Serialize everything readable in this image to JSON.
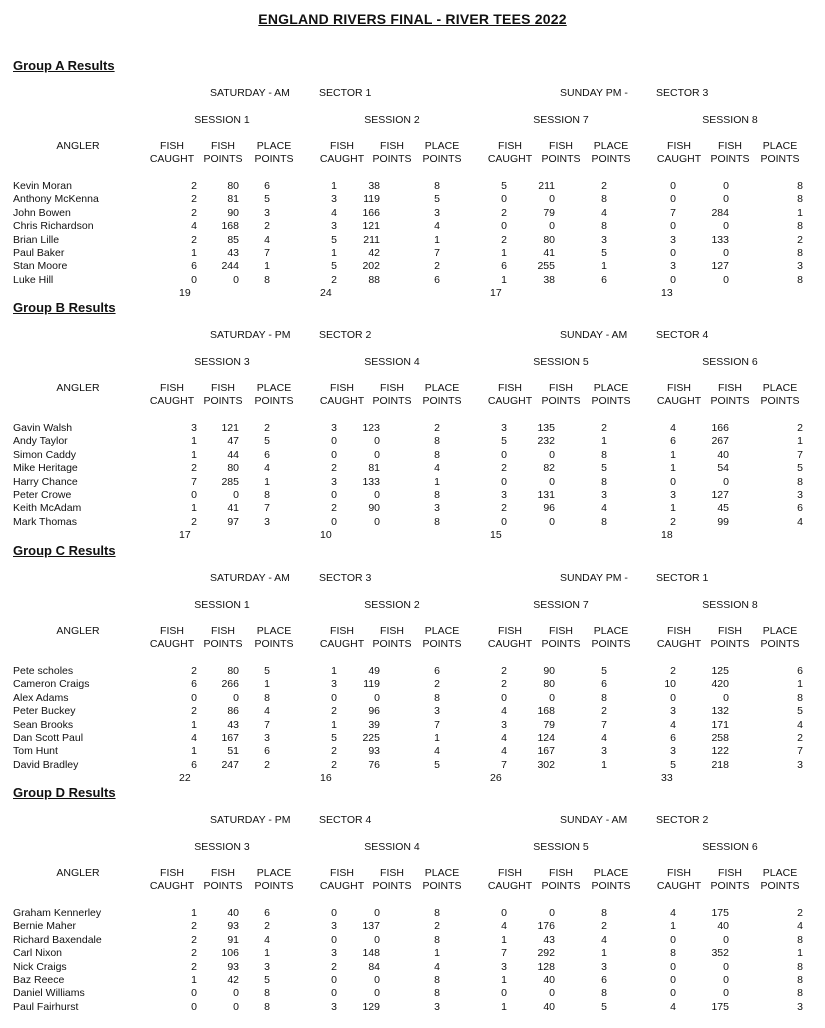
{
  "title": "ENGLAND RIVERS FINAL - RIVER TEES 2022",
  "column_headers": {
    "angler": "ANGLER",
    "fish_caught": [
      "FISH",
      "CAUGHT"
    ],
    "fish_points": [
      "FISH",
      "POINTS"
    ],
    "place_points": [
      "PLACE",
      "POINTS"
    ]
  },
  "groups": [
    {
      "heading": "Group A Results",
      "day1": "SATURDAY - AM",
      "sector1": "SECTOR 1",
      "day2": "SUNDAY PM -",
      "sector2": "SECTOR 3",
      "sessions": [
        "SESSION 1",
        "SESSION 2",
        "SESSION 7",
        "SESSION 8"
      ],
      "rows": [
        {
          "angler": "Kevin Moran",
          "v": [
            2,
            80,
            6,
            1,
            38,
            8,
            5,
            211,
            2,
            0,
            0,
            8
          ]
        },
        {
          "angler": "Anthony McKenna",
          "v": [
            2,
            81,
            5,
            3,
            119,
            5,
            0,
            0,
            8,
            0,
            0,
            8
          ]
        },
        {
          "angler": "John Bowen",
          "v": [
            2,
            90,
            3,
            4,
            166,
            3,
            2,
            79,
            4,
            7,
            284,
            1
          ]
        },
        {
          "angler": "Chris Richardson",
          "v": [
            4,
            168,
            2,
            3,
            121,
            4,
            0,
            0,
            8,
            0,
            0,
            8
          ]
        },
        {
          "angler": "Brian Lille",
          "v": [
            2,
            85,
            4,
            5,
            211,
            1,
            2,
            80,
            3,
            3,
            133,
            2
          ]
        },
        {
          "angler": "Paul Baker",
          "v": [
            1,
            43,
            7,
            1,
            42,
            7,
            1,
            41,
            5,
            0,
            0,
            8
          ]
        },
        {
          "angler": "Stan Moore",
          "v": [
            6,
            244,
            1,
            5,
            202,
            2,
            6,
            255,
            1,
            3,
            127,
            3
          ]
        },
        {
          "angler": "Luke Hill",
          "v": [
            0,
            0,
            8,
            2,
            88,
            6,
            1,
            38,
            6,
            0,
            0,
            8
          ]
        }
      ],
      "totals": [
        19,
        24,
        17,
        13
      ]
    },
    {
      "heading": "Group B Results",
      "day1": "SATURDAY - PM",
      "sector1": "SECTOR 2",
      "day2": "SUNDAY - AM",
      "sector2": "SECTOR 4",
      "sessions": [
        "SESSION 3",
        "SESSION 4",
        "SESSION 5",
        "SESSION 6"
      ],
      "rows": [
        {
          "angler": "Gavin Walsh",
          "v": [
            3,
            121,
            2,
            3,
            123,
            2,
            3,
            135,
            2,
            4,
            166,
            2
          ]
        },
        {
          "angler": "Andy Taylor",
          "v": [
            1,
            47,
            5,
            0,
            0,
            8,
            5,
            232,
            1,
            6,
            267,
            1
          ]
        },
        {
          "angler": "Simon Caddy",
          "v": [
            1,
            44,
            6,
            0,
            0,
            8,
            0,
            0,
            8,
            1,
            40,
            7
          ]
        },
        {
          "angler": "Mike Heritage",
          "v": [
            2,
            80,
            4,
            2,
            81,
            4,
            2,
            82,
            5,
            1,
            54,
            5
          ]
        },
        {
          "angler": "Harry Chance",
          "v": [
            7,
            285,
            1,
            3,
            133,
            1,
            0,
            0,
            8,
            0,
            0,
            8
          ]
        },
        {
          "angler": "Peter Crowe",
          "v": [
            0,
            0,
            8,
            0,
            0,
            8,
            3,
            131,
            3,
            3,
            127,
            3
          ]
        },
        {
          "angler": "Keith McAdam",
          "v": [
            1,
            41,
            7,
            2,
            90,
            3,
            2,
            96,
            4,
            1,
            45,
            6
          ]
        },
        {
          "angler": "Mark Thomas",
          "v": [
            2,
            97,
            3,
            0,
            0,
            8,
            0,
            0,
            8,
            2,
            99,
            4
          ]
        }
      ],
      "totals": [
        17,
        10,
        15,
        18
      ]
    },
    {
      "heading": "Group C Results",
      "day1": "SATURDAY - AM",
      "sector1": "SECTOR 3",
      "day2": "SUNDAY PM -",
      "sector2": "SECTOR 1",
      "sessions": [
        "SESSION 1",
        "SESSION 2",
        "SESSION 7",
        "SESSION 8"
      ],
      "rows": [
        {
          "angler": "Pete scholes",
          "v": [
            2,
            80,
            5,
            1,
            49,
            6,
            2,
            90,
            5,
            2,
            125,
            6
          ]
        },
        {
          "angler": "Cameron Craigs",
          "v": [
            6,
            266,
            1,
            3,
            119,
            2,
            2,
            80,
            6,
            10,
            420,
            1
          ]
        },
        {
          "angler": "Alex Adams",
          "v": [
            0,
            0,
            8,
            0,
            0,
            8,
            0,
            0,
            8,
            0,
            0,
            8
          ]
        },
        {
          "angler": "Peter Buckey",
          "v": [
            2,
            86,
            4,
            2,
            96,
            3,
            4,
            168,
            2,
            3,
            132,
            5
          ]
        },
        {
          "angler": "Sean Brooks",
          "v": [
            1,
            43,
            7,
            1,
            39,
            7,
            3,
            79,
            7,
            4,
            171,
            4
          ]
        },
        {
          "angler": "Dan Scott Paul",
          "v": [
            4,
            167,
            3,
            5,
            225,
            1,
            4,
            124,
            4,
            6,
            258,
            2
          ]
        },
        {
          "angler": "Tom Hunt",
          "v": [
            1,
            51,
            6,
            2,
            93,
            4,
            4,
            167,
            3,
            3,
            122,
            7
          ]
        },
        {
          "angler": "David Bradley",
          "v": [
            6,
            247,
            2,
            2,
            76,
            5,
            7,
            302,
            1,
            5,
            218,
            3
          ]
        }
      ],
      "totals": [
        22,
        16,
        26,
        33
      ]
    },
    {
      "heading": "Group D Results",
      "day1": "SATURDAY - PM",
      "sector1": "SECTOR 4",
      "day2": "SUNDAY - AM",
      "sector2": "SECTOR 2",
      "sessions": [
        "SESSION 3",
        "SESSION 4",
        "SESSION 5",
        "SESSION 6"
      ],
      "rows": [
        {
          "angler": "Graham Kennerley",
          "v": [
            1,
            40,
            6,
            0,
            0,
            8,
            0,
            0,
            8,
            4,
            175,
            2
          ]
        },
        {
          "angler": "Bernie Maher",
          "v": [
            2,
            93,
            2,
            3,
            137,
            2,
            4,
            176,
            2,
            1,
            40,
            4
          ]
        },
        {
          "angler": "Richard Baxendale",
          "v": [
            2,
            91,
            4,
            0,
            0,
            8,
            1,
            43,
            4,
            0,
            0,
            8
          ]
        },
        {
          "angler": "Carl Nixon",
          "v": [
            2,
            106,
            1,
            3,
            148,
            1,
            7,
            292,
            1,
            8,
            352,
            1
          ]
        },
        {
          "angler": "Nick Craigs",
          "v": [
            2,
            93,
            3,
            2,
            84,
            4,
            3,
            128,
            3,
            0,
            0,
            8
          ]
        },
        {
          "angler": "Baz Reece",
          "v": [
            1,
            42,
            5,
            0,
            0,
            8,
            1,
            40,
            6,
            0,
            0,
            8
          ]
        },
        {
          "angler": "Daniel Williams",
          "v": [
            0,
            0,
            8,
            0,
            0,
            8,
            0,
            0,
            8,
            0,
            0,
            8
          ]
        },
        {
          "angler": "Paul Fairhurst",
          "v": [
            0,
            0,
            8,
            3,
            129,
            3,
            1,
            40,
            5,
            4,
            175,
            3
          ]
        }
      ],
      "totals": []
    }
  ]
}
